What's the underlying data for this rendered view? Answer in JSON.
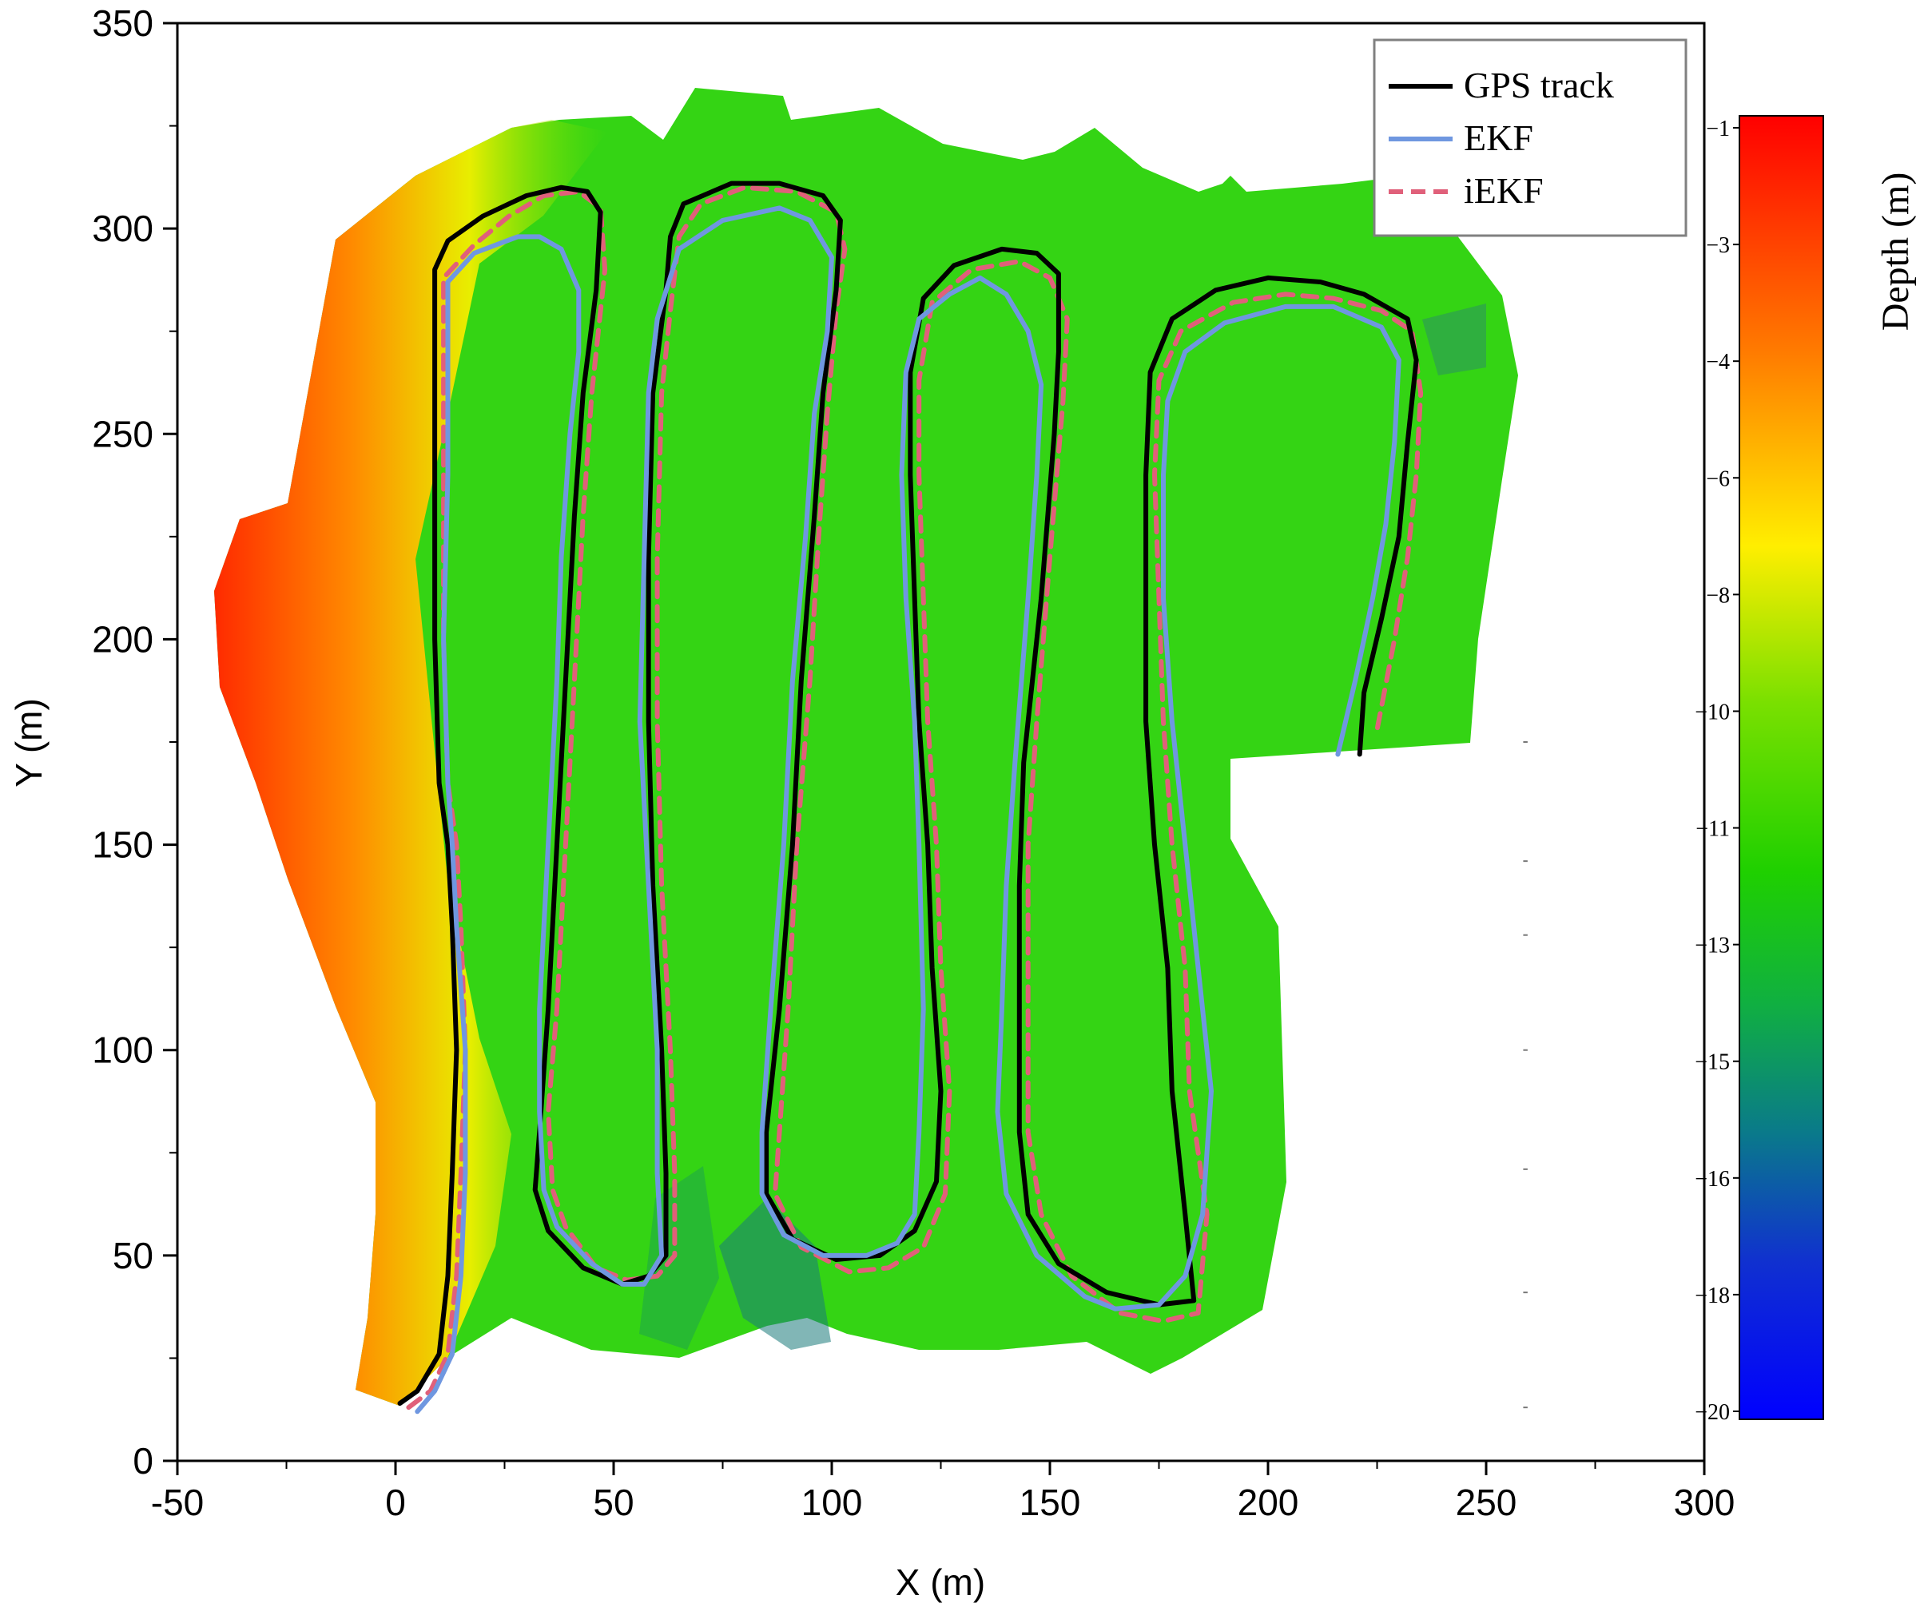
{
  "chart_data": {
    "type": "line",
    "xlabel": "X (m)",
    "ylabel": "Y (m)",
    "xlim": [
      -50,
      300
    ],
    "ylim": [
      0,
      350
    ],
    "xticks": [
      -50,
      0,
      50,
      100,
      150,
      200,
      250,
      300
    ],
    "yticks": [
      0,
      50,
      100,
      150,
      200,
      250,
      300,
      350
    ],
    "legend_position": "top-right",
    "legend": [
      {
        "label": "GPS track",
        "color": "#000000",
        "style": "solid"
      },
      {
        "label": "EKF",
        "color": "#6f97e0",
        "style": "solid"
      },
      {
        "label": "iEKF",
        "color": "#e0607a",
        "style": "dashed"
      }
    ],
    "colorbar": {
      "label": "Depth (m)",
      "range": [
        -20,
        -1
      ],
      "ticks": [
        "−1",
        "−3",
        "−4",
        "−6",
        "−8",
        "−10",
        "−11",
        "−13",
        "−15",
        "−16",
        "−18",
        "−20"
      ],
      "colors": [
        "#ff0000",
        "#ff8000",
        "#ffee00",
        "#7ae000",
        "#1fd000",
        "#10b040",
        "#0a7a8a",
        "#0000ff"
      ]
    },
    "series": [
      {
        "name": "GPS track",
        "color": "#000000",
        "points": [
          [
            1,
            14
          ],
          [
            5,
            17
          ],
          [
            10,
            26
          ],
          [
            12,
            45
          ],
          [
            13,
            70
          ],
          [
            14,
            100
          ],
          [
            13,
            130
          ],
          [
            12,
            150
          ],
          [
            10,
            165
          ],
          [
            9,
            200
          ],
          [
            9,
            240
          ],
          [
            9,
            270
          ],
          [
            9,
            290
          ],
          [
            12,
            297
          ],
          [
            20,
            303
          ],
          [
            30,
            308
          ],
          [
            38,
            310
          ],
          [
            44,
            309
          ],
          [
            47,
            304
          ],
          [
            46,
            285
          ],
          [
            43,
            260
          ],
          [
            41,
            230
          ],
          [
            39,
            190
          ],
          [
            37,
            150
          ],
          [
            35,
            110
          ],
          [
            33,
            80
          ],
          [
            32,
            66
          ],
          [
            35,
            56
          ],
          [
            43,
            47
          ],
          [
            52,
            43
          ],
          [
            58,
            45
          ],
          [
            62,
            50
          ],
          [
            62,
            70
          ],
          [
            61,
            100
          ],
          [
            59,
            140
          ],
          [
            58,
            180
          ],
          [
            58,
            220
          ],
          [
            59,
            260
          ],
          [
            62,
            285
          ],
          [
            63,
            298
          ],
          [
            66,
            306
          ],
          [
            77,
            311
          ],
          [
            88,
            311
          ],
          [
            98,
            308
          ],
          [
            102,
            302
          ],
          [
            101,
            285
          ],
          [
            98,
            260
          ],
          [
            96,
            230
          ],
          [
            93,
            190
          ],
          [
            91,
            150
          ],
          [
            88,
            110
          ],
          [
            85,
            80
          ],
          [
            85,
            65
          ],
          [
            91,
            54
          ],
          [
            101,
            49
          ],
          [
            111,
            50
          ],
          [
            119,
            56
          ],
          [
            124,
            68
          ],
          [
            125,
            90
          ],
          [
            123,
            120
          ],
          [
            122,
            150
          ],
          [
            120,
            180
          ],
          [
            119,
            210
          ],
          [
            118,
            240
          ],
          [
            118,
            265
          ],
          [
            121,
            283
          ],
          [
            128,
            291
          ],
          [
            139,
            295
          ],
          [
            147,
            294
          ],
          [
            152,
            289
          ],
          [
            152,
            270
          ],
          [
            151,
            250
          ],
          [
            148,
            210
          ],
          [
            144,
            170
          ],
          [
            143,
            140
          ],
          [
            143,
            110
          ],
          [
            143,
            80
          ],
          [
            145,
            60
          ],
          [
            152,
            48
          ],
          [
            163,
            41
          ],
          [
            175,
            38
          ],
          [
            183,
            39
          ],
          [
            181,
            60
          ],
          [
            178,
            90
          ],
          [
            177,
            120
          ],
          [
            174,
            150
          ],
          [
            172,
            180
          ],
          [
            172,
            210
          ],
          [
            172,
            240
          ],
          [
            173,
            265
          ],
          [
            178,
            278
          ],
          [
            188,
            285
          ],
          [
            200,
            288
          ],
          [
            212,
            287
          ],
          [
            222,
            284
          ],
          [
            232,
            278
          ],
          [
            234,
            268
          ],
          [
            232,
            248
          ],
          [
            230,
            225
          ],
          [
            226,
            205
          ],
          [
            222,
            187
          ],
          [
            221,
            172
          ]
        ]
      },
      {
        "name": "EKF",
        "color": "#6f97e0",
        "points": [
          [
            5,
            12
          ],
          [
            9,
            17
          ],
          [
            13,
            26
          ],
          [
            15,
            45
          ],
          [
            16,
            70
          ],
          [
            16,
            100
          ],
          [
            14,
            130
          ],
          [
            13,
            150
          ],
          [
            12,
            165
          ],
          [
            11,
            200
          ],
          [
            12,
            240
          ],
          [
            12,
            270
          ],
          [
            12,
            287
          ],
          [
            18,
            294
          ],
          [
            28,
            298
          ],
          [
            33,
            298
          ],
          [
            38,
            295
          ],
          [
            42,
            285
          ],
          [
            42,
            270
          ],
          [
            40,
            250
          ],
          [
            38,
            220
          ],
          [
            37,
            190
          ],
          [
            35,
            150
          ],
          [
            33,
            110
          ],
          [
            33,
            85
          ],
          [
            34,
            66
          ],
          [
            37,
            57
          ],
          [
            45,
            48
          ],
          [
            52,
            43
          ],
          [
            57,
            43
          ],
          [
            61,
            50
          ],
          [
            60,
            70
          ],
          [
            60,
            100
          ],
          [
            58,
            140
          ],
          [
            56,
            180
          ],
          [
            57,
            220
          ],
          [
            58,
            260
          ],
          [
            60,
            278
          ],
          [
            65,
            295
          ],
          [
            75,
            302
          ],
          [
            88,
            305
          ],
          [
            95,
            302
          ],
          [
            100,
            293
          ],
          [
            99,
            275
          ],
          [
            96,
            255
          ],
          [
            94,
            225
          ],
          [
            91,
            190
          ],
          [
            89,
            150
          ],
          [
            86,
            110
          ],
          [
            84,
            80
          ],
          [
            84,
            65
          ],
          [
            89,
            55
          ],
          [
            98,
            50
          ],
          [
            108,
            50
          ],
          [
            115,
            53
          ],
          [
            119,
            60
          ],
          [
            120,
            80
          ],
          [
            121,
            110
          ],
          [
            120,
            150
          ],
          [
            119,
            180
          ],
          [
            117,
            210
          ],
          [
            116,
            240
          ],
          [
            117,
            265
          ],
          [
            120,
            278
          ],
          [
            127,
            284
          ],
          [
            134,
            288
          ],
          [
            140,
            284
          ],
          [
            145,
            275
          ],
          [
            148,
            262
          ],
          [
            147,
            240
          ],
          [
            145,
            210
          ],
          [
            142,
            170
          ],
          [
            140,
            140
          ],
          [
            139,
            110
          ],
          [
            138,
            85
          ],
          [
            140,
            65
          ],
          [
            147,
            50
          ],
          [
            158,
            40
          ],
          [
            165,
            37
          ],
          [
            175,
            38
          ],
          [
            181,
            45
          ],
          [
            185,
            60
          ],
          [
            187,
            90
          ],
          [
            184,
            120
          ],
          [
            181,
            150
          ],
          [
            178,
            180
          ],
          [
            176,
            210
          ],
          [
            176,
            240
          ],
          [
            177,
            258
          ],
          [
            181,
            270
          ],
          [
            190,
            277
          ],
          [
            204,
            281
          ],
          [
            215,
            281
          ],
          [
            226,
            276
          ],
          [
            230,
            268
          ],
          [
            229,
            248
          ],
          [
            227,
            228
          ],
          [
            224,
            210
          ],
          [
            220,
            190
          ],
          [
            216,
            172
          ]
        ]
      },
      {
        "name": "iEKF",
        "color": "#e0607a",
        "points": [
          [
            3,
            13
          ],
          [
            8,
            17
          ],
          [
            12,
            26
          ],
          [
            14,
            45
          ],
          [
            15,
            70
          ],
          [
            16,
            100
          ],
          [
            15,
            130
          ],
          [
            14,
            150
          ],
          [
            12,
            165
          ],
          [
            11,
            200
          ],
          [
            11,
            240
          ],
          [
            11,
            270
          ],
          [
            11,
            288
          ],
          [
            18,
            296
          ],
          [
            26,
            303
          ],
          [
            34,
            308
          ],
          [
            42,
            309
          ],
          [
            47,
            305
          ],
          [
            48,
            290
          ],
          [
            45,
            260
          ],
          [
            43,
            230
          ],
          [
            41,
            190
          ],
          [
            39,
            150
          ],
          [
            37,
            110
          ],
          [
            35,
            85
          ],
          [
            36,
            66
          ],
          [
            39,
            57
          ],
          [
            46,
            47
          ],
          [
            53,
            44
          ],
          [
            60,
            45
          ],
          [
            64,
            50
          ],
          [
            64,
            70
          ],
          [
            63,
            100
          ],
          [
            61,
            140
          ],
          [
            60,
            180
          ],
          [
            60,
            220
          ],
          [
            61,
            260
          ],
          [
            63,
            280
          ],
          [
            65,
            298
          ],
          [
            70,
            306
          ],
          [
            80,
            310
          ],
          [
            92,
            309
          ],
          [
            101,
            304
          ],
          [
            103,
            295
          ],
          [
            101,
            280
          ],
          [
            99,
            255
          ],
          [
            97,
            225
          ],
          [
            95,
            190
          ],
          [
            92,
            150
          ],
          [
            90,
            110
          ],
          [
            88,
            80
          ],
          [
            87,
            65
          ],
          [
            93,
            52
          ],
          [
            104,
            46
          ],
          [
            113,
            47
          ],
          [
            121,
            52
          ],
          [
            126,
            65
          ],
          [
            127,
            90
          ],
          [
            125,
            120
          ],
          [
            124,
            150
          ],
          [
            122,
            180
          ],
          [
            121,
            210
          ],
          [
            120,
            240
          ],
          [
            120,
            263
          ],
          [
            123,
            282
          ],
          [
            132,
            290
          ],
          [
            143,
            292
          ],
          [
            150,
            288
          ],
          [
            154,
            278
          ],
          [
            153,
            258
          ],
          [
            150,
            220
          ],
          [
            147,
            180
          ],
          [
            145,
            150
          ],
          [
            145,
            110
          ],
          [
            145,
            80
          ],
          [
            148,
            60
          ],
          [
            155,
            45
          ],
          [
            166,
            36
          ],
          [
            176,
            34
          ],
          [
            184,
            36
          ],
          [
            186,
            60
          ],
          [
            182,
            90
          ],
          [
            181,
            120
          ],
          [
            178,
            150
          ],
          [
            176,
            180
          ],
          [
            175,
            210
          ],
          [
            174,
            240
          ],
          [
            175,
            263
          ],
          [
            180,
            275
          ],
          [
            192,
            282
          ],
          [
            204,
            284
          ],
          [
            215,
            283
          ],
          [
            226,
            280
          ],
          [
            233,
            275
          ],
          [
            235,
            260
          ],
          [
            234,
            240
          ],
          [
            232,
            220
          ],
          [
            229,
            200
          ],
          [
            225,
            178
          ]
        ]
      }
    ]
  }
}
